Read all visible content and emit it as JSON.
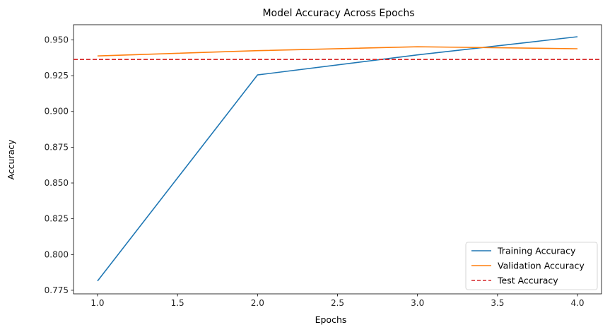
{
  "chart_data": {
    "type": "line",
    "title": "Model Accuracy Across Epochs",
    "xlabel": "Epochs",
    "ylabel": "Accuracy",
    "xlim": [
      0.85,
      4.15
    ],
    "ylim": [
      0.7725,
      0.9606
    ],
    "xticks": [
      1.0,
      1.5,
      2.0,
      2.5,
      3.0,
      3.5,
      4.0
    ],
    "xtick_labels": [
      "1.0",
      "1.5",
      "2.0",
      "2.5",
      "3.0",
      "3.5",
      "4.0"
    ],
    "yticks": [
      0.775,
      0.8,
      0.825,
      0.85,
      0.875,
      0.9,
      0.925,
      0.95
    ],
    "ytick_labels": [
      "0.775",
      "0.800",
      "0.825",
      "0.850",
      "0.875",
      "0.900",
      "0.925",
      "0.950"
    ],
    "grid": false,
    "legend_position": "bottom-right",
    "series": [
      {
        "name": "Training Accuracy",
        "color": "#1f77b4",
        "style": "solid",
        "x": [
          1,
          2,
          3,
          4
        ],
        "y": [
          0.7815,
          0.9255,
          0.9395,
          0.9522
        ]
      },
      {
        "name": "Validation Accuracy",
        "color": "#ff7f0e",
        "style": "solid",
        "x": [
          1,
          2,
          3,
          4
        ],
        "y": [
          0.9388,
          0.9425,
          0.9452,
          0.9438
        ]
      }
    ],
    "hlines": [
      {
        "name": "Test Accuracy",
        "color": "#d62728",
        "style": "dashed",
        "y": 0.9363
      }
    ]
  }
}
